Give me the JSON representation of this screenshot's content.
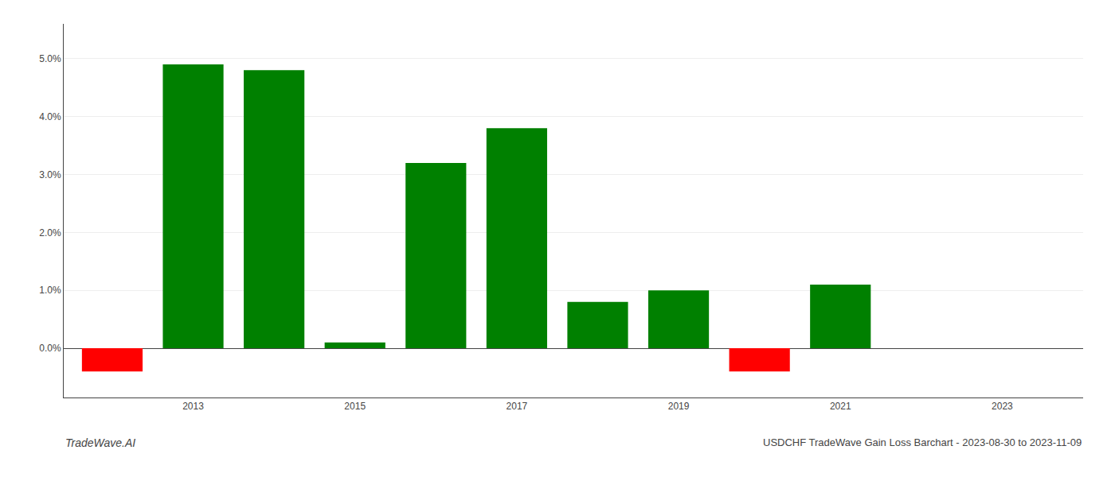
{
  "chart_data": {
    "type": "bar",
    "title": "USDCHF TradeWave Gain Loss Barchart - 2023-08-30 to 2023-11-09",
    "annotations": [
      "TradeWave.AI"
    ],
    "x": [
      2012,
      2013,
      2014,
      2015,
      2016,
      2017,
      2018,
      2019,
      2020,
      2021,
      2022
    ],
    "values": [
      -0.004,
      0.049,
      0.048,
      0.001,
      0.032,
      0.038,
      0.008,
      0.01,
      -0.004,
      0.011,
      0.0
    ],
    "colors": [
      "#ff0000",
      "#008000",
      "#008000",
      "#008000",
      "#008000",
      "#008000",
      "#008000",
      "#008000",
      "#ff0000",
      "#008000",
      "#ffffff"
    ],
    "xlim": [
      2011.4,
      2024.0
    ],
    "xticks": [
      2013,
      2015,
      2017,
      2019,
      2021,
      2023
    ],
    "ylim": [
      -0.0085,
      0.056
    ],
    "yticks": [
      {
        "value": 0.0,
        "label": "0.0%"
      },
      {
        "value": 0.01,
        "label": "1.0%"
      },
      {
        "value": 0.02,
        "label": "2.0%"
      },
      {
        "value": 0.03,
        "label": "3.0%"
      },
      {
        "value": 0.04,
        "label": "4.0%"
      },
      {
        "value": 0.05,
        "label": "5.0%"
      }
    ],
    "grid": true
  }
}
